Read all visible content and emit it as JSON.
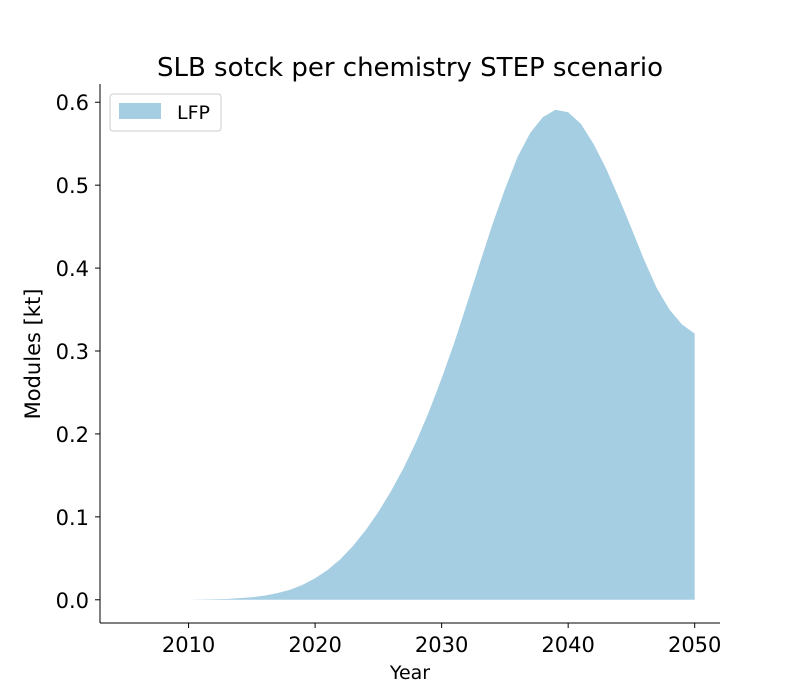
{
  "chart_data": {
    "type": "area",
    "title": "SLB sotck per chemistry STEP scenario",
    "xlabel": "Year",
    "ylabel": "Modules [kt]",
    "xlim": [
      2003,
      2052
    ],
    "ylim": [
      -0.028,
      0.622
    ],
    "xticks": [
      2010,
      2020,
      2030,
      2040,
      2050
    ],
    "yticks": [
      0.0,
      0.1,
      0.2,
      0.3,
      0.4,
      0.5,
      0.6
    ],
    "ytick_labels": [
      "0.0",
      "0.1",
      "0.2",
      "0.3",
      "0.4",
      "0.5",
      "0.6"
    ],
    "legend_position": "top-left",
    "grid": false,
    "series": [
      {
        "name": "LFP",
        "color": "#a6cee3",
        "x": [
          2010,
          2011,
          2012,
          2013,
          2014,
          2015,
          2016,
          2017,
          2018,
          2019,
          2020,
          2021,
          2022,
          2023,
          2024,
          2025,
          2026,
          2027,
          2028,
          2029,
          2030,
          2031,
          2032,
          2033,
          2034,
          2035,
          2036,
          2037,
          2038,
          2039,
          2040,
          2041,
          2042,
          2043,
          2044,
          2045,
          2046,
          2047,
          2048,
          2049,
          2050
        ],
        "y": [
          0.0,
          0.0003,
          0.0006,
          0.001,
          0.002,
          0.003,
          0.005,
          0.008,
          0.012,
          0.018,
          0.026,
          0.036,
          0.049,
          0.065,
          0.084,
          0.106,
          0.131,
          0.159,
          0.191,
          0.227,
          0.267,
          0.31,
          0.357,
          0.405,
          0.452,
          0.495,
          0.534,
          0.563,
          0.582,
          0.591,
          0.588,
          0.574,
          0.55,
          0.52,
          0.485,
          0.448,
          0.41,
          0.376,
          0.35,
          0.332,
          0.321
        ]
      }
    ]
  }
}
